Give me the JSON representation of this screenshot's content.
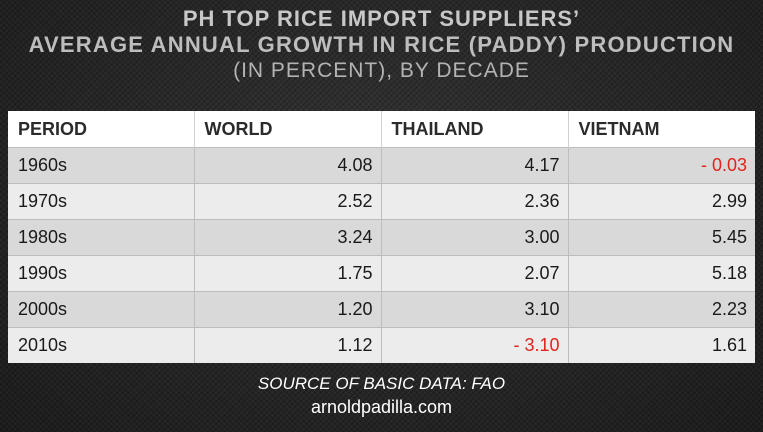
{
  "title": {
    "line1": "PH TOP RICE IMPORT SUPPLIERS’",
    "line2": "AVERAGE ANNUAL GROWTH IN RICE (PADDY) PRODUCTION",
    "line3": "(IN PERCENT), BY DECADE"
  },
  "chart_data": {
    "type": "table",
    "columns": [
      "PERIOD",
      "WORLD",
      "THAILAND",
      "VIETNAM"
    ],
    "rows": [
      {
        "period": "1960s",
        "values": [
          "4.08",
          "4.17",
          "- 0.03"
        ]
      },
      {
        "period": "1970s",
        "values": [
          "2.52",
          "2.36",
          "2.99"
        ]
      },
      {
        "period": "1980s",
        "values": [
          "3.24",
          "3.00",
          "5.45"
        ]
      },
      {
        "period": "1990s",
        "values": [
          "1.75",
          "2.07",
          "5.18"
        ]
      },
      {
        "period": "2000s",
        "values": [
          "1.20",
          "3.10",
          "2.23"
        ]
      },
      {
        "period": "2010s",
        "values": [
          "1.12",
          "- 3.10",
          "1.61"
        ]
      }
    ],
    "negative_color": "#e0241b"
  },
  "footer": {
    "source": "SOURCE OF BASIC DATA: FAO",
    "site": "arnoldpadilla.com"
  }
}
